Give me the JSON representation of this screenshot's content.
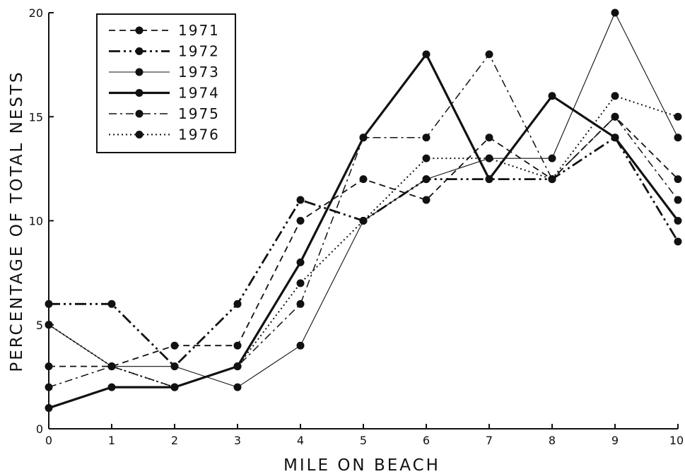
{
  "chart_data": {
    "type": "line",
    "xlabel": "MILE ON BEACH",
    "ylabel": "PERCENTAGE OF TOTAL NESTS",
    "xlim": [
      0,
      10
    ],
    "ylim": [
      0,
      20
    ],
    "x_ticks": [
      "0",
      "1",
      "2",
      "3",
      "4",
      "5",
      "6",
      "7",
      "8",
      "9",
      "10"
    ],
    "y_ticks": [
      "0",
      "5",
      "10",
      "15",
      "20"
    ],
    "grid": false,
    "legend_position": "top-left",
    "x": [
      0,
      1,
      2,
      3,
      4,
      5,
      6,
      7,
      8,
      9,
      10
    ],
    "series": [
      {
        "name": "1971",
        "style": "dashed",
        "values": [
          3,
          3,
          4,
          4,
          10,
          12,
          11,
          14,
          12,
          15,
          12
        ]
      },
      {
        "name": "1972",
        "style": "dash-dot-dot-thick",
        "values": [
          6,
          6,
          3,
          6,
          11,
          10,
          12,
          12,
          12,
          14,
          9
        ]
      },
      {
        "name": "1973",
        "style": "solid-thin",
        "values": [
          5,
          3,
          3,
          2,
          4,
          10,
          12,
          13,
          13,
          20,
          14
        ]
      },
      {
        "name": "1974",
        "style": "solid-thick",
        "values": [
          1,
          2,
          2,
          3,
          8,
          14,
          18,
          12,
          16,
          14,
          10
        ]
      },
      {
        "name": "1975",
        "style": "dash-dot",
        "values": [
          2,
          3,
          2,
          3,
          6,
          14,
          14,
          18,
          12,
          15,
          11
        ]
      },
      {
        "name": "1976",
        "style": "dotted",
        "values": [
          5,
          3,
          2,
          3,
          7,
          10,
          13,
          13,
          12,
          16,
          15
        ]
      }
    ]
  }
}
